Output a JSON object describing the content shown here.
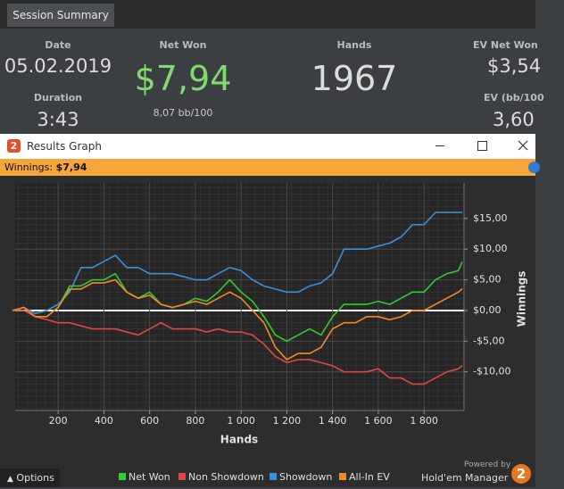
{
  "tab": "Session Summary",
  "summary": {
    "date_label": "Date",
    "date_value": "05.02.2019",
    "duration_label": "Duration",
    "duration_value": "3:43",
    "net_won_label": "Net Won",
    "net_won_value": "$7,94",
    "net_won_sub": "8,07 bb/100",
    "hands_label": "Hands",
    "hands_value": "1967",
    "ev_net_won_label": "EV Net Won",
    "ev_net_won_value": "$3,54",
    "ev_bb_label": "EV (bb/100",
    "ev_bb_value": "3,60"
  },
  "window": {
    "icon": "2",
    "title": "Results Graph"
  },
  "status": {
    "label": "Winnings:",
    "value": "$7,94"
  },
  "footer": {
    "options": "Options",
    "powered_by": "Powered by",
    "brand": "Hold'em Manager",
    "logo": "2"
  },
  "chart_data": {
    "type": "line",
    "x_label": "Hands",
    "y_label": "Winnings",
    "x": [
      0,
      50,
      100,
      150,
      200,
      250,
      300,
      350,
      400,
      450,
      500,
      550,
      600,
      650,
      700,
      750,
      800,
      850,
      900,
      950,
      1000,
      1050,
      1100,
      1150,
      1200,
      1250,
      1300,
      1350,
      1400,
      1450,
      1500,
      1550,
      1600,
      1650,
      1700,
      1750,
      1800,
      1850,
      1900,
      1950,
      1967
    ],
    "xlim": [
      12,
      1975
    ],
    "xticks": [
      200,
      400,
      600,
      800,
      {
        "value": 1000,
        "label": "1 000"
      },
      {
        "value": 1200,
        "label": "1 200"
      },
      {
        "value": 1400,
        "label": "1 400"
      },
      {
        "value": 1600,
        "label": "1 600"
      },
      {
        "value": 1800,
        "label": "1 800"
      }
    ],
    "ylim": [
      -16.3,
      20.8
    ],
    "yticks": [
      {
        "value": -10,
        "label": "-$10,00"
      },
      {
        "value": -5,
        "label": "-$5,00"
      },
      {
        "value": 0,
        "label": "$0,00"
      },
      {
        "value": 5,
        "label": "$5,00"
      },
      {
        "value": 10,
        "label": "$10,00"
      },
      {
        "value": 15,
        "label": "$15,00"
      }
    ],
    "grid": true,
    "series": [
      {
        "name": "Net Won",
        "color": "#2ecc2e",
        "values": [
          0,
          0.5,
          -1,
          -1,
          0.5,
          4,
          4,
          5,
          5,
          6,
          3,
          2,
          3,
          1,
          0.5,
          1,
          2,
          1.5,
          3,
          5,
          3,
          1.5,
          -1,
          -4,
          -5,
          -4,
          -3,
          -4,
          -1,
          1,
          1,
          1,
          1.5,
          1,
          2,
          3,
          3,
          5,
          6,
          6.5,
          7.94
        ]
      },
      {
        "name": "Non Showdown",
        "color": "#e04646",
        "values": [
          0,
          0,
          -1,
          -1.5,
          -2,
          -2,
          -2.5,
          -3,
          -3,
          -3,
          -3.5,
          -4,
          -3,
          -2,
          -3,
          -3,
          -3,
          -3.5,
          -3,
          -3.5,
          -3.5,
          -4,
          -5.5,
          -7.5,
          -8.5,
          -8,
          -8,
          -8.5,
          -9,
          -10,
          -10,
          -10,
          -9.5,
          -11,
          -11,
          -12,
          -12,
          -11,
          -10,
          -9.5,
          -9
        ]
      },
      {
        "name": "Showdown",
        "color": "#3d8fd6",
        "values": [
          0,
          0.5,
          -0.5,
          0,
          1,
          3,
          7,
          7,
          8,
          9,
          7,
          7,
          6,
          6,
          6,
          5.5,
          5,
          5,
          6,
          7,
          6.5,
          5,
          4,
          3.5,
          3,
          3,
          4,
          4.5,
          6,
          10,
          10,
          10,
          10.5,
          11,
          12,
          14,
          14,
          16,
          16,
          16,
          16
        ]
      },
      {
        "name": "All-In EV",
        "color": "#f08a24",
        "values": [
          0,
          0.5,
          -1,
          -1,
          0.5,
          3.5,
          3.5,
          4.5,
          4.5,
          5,
          3,
          2,
          2.5,
          1,
          0.5,
          1,
          1.5,
          1,
          2,
          3,
          2,
          0,
          -2,
          -6,
          -8,
          -7,
          -7,
          -6,
          -3,
          -2,
          -2,
          -1,
          -1,
          -1.5,
          -1,
          0,
          0,
          1,
          2,
          3,
          3.54
        ]
      }
    ]
  }
}
